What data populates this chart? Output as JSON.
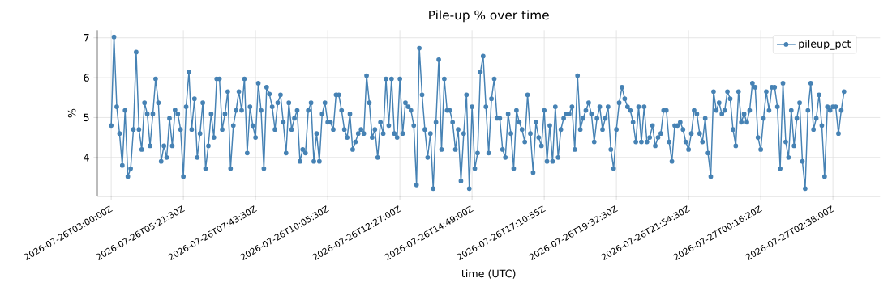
{
  "chart_data": {
    "type": "line",
    "title": "Pile-up % over time",
    "xlabel": "time (UTC)",
    "ylabel": "%",
    "categories": [
      "2026-07-26T03:00:00Z",
      null,
      null,
      null,
      null,
      null,
      null,
      null,
      null,
      null,
      null,
      null,
      null,
      null,
      null,
      null,
      null,
      null,
      null,
      null,
      null,
      null,
      null,
      null,
      null,
      null,
      "2026-07-26T05:21:30Z",
      null,
      null,
      null,
      null,
      null,
      null,
      null,
      null,
      null,
      null,
      null,
      null,
      null,
      null,
      null,
      null,
      null,
      null,
      null,
      null,
      null,
      null,
      null,
      null,
      null,
      "2026-07-26T07:43:30Z",
      null,
      null,
      null,
      null,
      null,
      null,
      null,
      null,
      null,
      null,
      null,
      null,
      null,
      null,
      null,
      null,
      null,
      null,
      null,
      null,
      null,
      null,
      null,
      null,
      null,
      "2026-07-26T10:05:30Z",
      null,
      null,
      null,
      null,
      null,
      null,
      null,
      null,
      null,
      null,
      null,
      null,
      null,
      null,
      null,
      null,
      null,
      null,
      null,
      null,
      null,
      null,
      null,
      null,
      null,
      "2026-07-26T12:27:00Z",
      null,
      null,
      null,
      null,
      null,
      null,
      null,
      null,
      null,
      null,
      null,
      null,
      null,
      null,
      null,
      null,
      null,
      null,
      null,
      null,
      null,
      null,
      null,
      null,
      null,
      "2026-07-26T14:49:00Z",
      null,
      null,
      null,
      null,
      null,
      null,
      null,
      null,
      null,
      null,
      null,
      null,
      null,
      null,
      null,
      null,
      null,
      null,
      null,
      null,
      null,
      null,
      null,
      null,
      null,
      "2026-07-26T17:10:55Z",
      null,
      null,
      null,
      null,
      null,
      null,
      null,
      null,
      null,
      null,
      null,
      null,
      null,
      null,
      null,
      null,
      null,
      null,
      null,
      null,
      null,
      null,
      null,
      null,
      null,
      "2026-07-26T19:32:30Z",
      null,
      null,
      null,
      null,
      null,
      null,
      null,
      null,
      null,
      null,
      null,
      null,
      null,
      null,
      null,
      null,
      null,
      null,
      null,
      null,
      null,
      null,
      null,
      null,
      null,
      "2026-07-26T21:54:30Z",
      null,
      null,
      null,
      null,
      null,
      null,
      null,
      null,
      null,
      null,
      null,
      null,
      null,
      null,
      null,
      null,
      null,
      null,
      null,
      null,
      null,
      null,
      null,
      null,
      null,
      "2026-07-27T00:16:20Z",
      null,
      null,
      null,
      null,
      null,
      null,
      null,
      null,
      null,
      null,
      null,
      null,
      null,
      null,
      null,
      null,
      null,
      null,
      null,
      null,
      null,
      null,
      null,
      null,
      null,
      "2026-07-27T02:38:00Z",
      null,
      null,
      null,
      null
    ],
    "series": [
      {
        "name": "pileup_pct",
        "color": "#4682b4",
        "values": [
          4.8,
          7.02,
          5.27,
          4.6,
          3.8,
          5.18,
          3.52,
          3.72,
          4.7,
          6.64,
          4.7,
          4.2,
          5.37,
          5.09,
          4.29,
          5.09,
          5.97,
          5.37,
          3.9,
          4.29,
          4.0,
          4.98,
          4.29,
          5.19,
          5.09,
          4.7,
          3.52,
          5.27,
          6.14,
          4.7,
          5.47,
          4.0,
          4.6,
          5.37,
          3.72,
          4.29,
          5.09,
          4.5,
          5.97,
          5.97,
          4.7,
          5.09,
          5.65,
          3.72,
          4.8,
          5.18,
          5.65,
          5.18,
          5.97,
          4.11,
          5.27,
          4.8,
          4.5,
          5.86,
          5.18,
          3.72,
          5.76,
          5.59,
          5.27,
          4.7,
          5.37,
          5.57,
          4.88,
          4.11,
          5.37,
          4.7,
          4.98,
          5.18,
          3.9,
          4.2,
          4.11,
          5.18,
          5.37,
          3.9,
          4.6,
          3.9,
          5.09,
          5.37,
          4.88,
          4.88,
          4.7,
          5.57,
          5.57,
          5.18,
          4.7,
          4.5,
          5.09,
          4.2,
          4.39,
          4.6,
          4.7,
          4.6,
          6.05,
          5.37,
          4.5,
          4.7,
          4.0,
          4.88,
          4.6,
          5.97,
          4.8,
          5.97,
          4.6,
          4.5,
          5.97,
          4.6,
          5.37,
          5.27,
          5.18,
          4.8,
          3.31,
          6.74,
          5.57,
          4.7,
          4.0,
          4.6,
          3.22,
          4.88,
          6.45,
          4.2,
          5.97,
          5.18,
          5.18,
          4.88,
          4.2,
          4.7,
          3.41,
          4.6,
          5.57,
          3.22,
          5.27,
          3.72,
          4.11,
          6.14,
          6.54,
          5.27,
          4.11,
          5.47,
          5.97,
          4.98,
          4.98,
          4.2,
          4.0,
          5.09,
          4.6,
          3.72,
          5.18,
          4.88,
          4.7,
          4.39,
          5.57,
          4.6,
          3.62,
          4.88,
          4.5,
          4.29,
          5.18,
          3.9,
          4.8,
          3.9,
          5.27,
          4.0,
          4.7,
          4.98,
          5.09,
          5.09,
          5.27,
          4.2,
          6.05,
          4.7,
          4.98,
          5.18,
          5.37,
          5.09,
          4.39,
          4.98,
          5.27,
          4.7,
          4.98,
          5.27,
          4.2,
          3.72,
          4.7,
          5.37,
          5.76,
          5.47,
          5.27,
          5.18,
          4.88,
          4.39,
          5.27,
          4.39,
          5.27,
          4.39,
          4.5,
          4.8,
          4.29,
          4.5,
          4.6,
          5.18,
          5.18,
          4.39,
          3.9,
          4.8,
          4.8,
          4.88,
          4.7,
          4.39,
          4.2,
          4.6,
          5.18,
          5.09,
          4.6,
          4.39,
          4.98,
          4.11,
          3.52,
          5.65,
          5.18,
          5.37,
          5.09,
          5.18,
          5.65,
          5.47,
          4.7,
          4.29,
          5.65,
          4.88,
          5.09,
          4.88,
          5.18,
          5.86,
          5.76,
          4.5,
          4.2,
          4.98,
          5.65,
          5.18,
          5.76,
          5.76,
          5.27,
          3.72,
          5.86,
          4.39,
          4.0,
          5.18,
          4.29,
          4.98,
          5.37,
          3.9,
          3.22,
          5.18,
          5.86,
          4.7,
          4.98,
          5.57,
          4.8,
          3.52,
          5.27,
          5.18,
          5.27,
          5.27,
          4.6,
          5.18,
          5.65
        ]
      }
    ],
    "ylim": [
      3.03,
      7.19
    ],
    "yticks": [
      4,
      5,
      6,
      7
    ],
    "grid": true,
    "legend": "top right",
    "marker": "circle",
    "line_style": "solid"
  }
}
